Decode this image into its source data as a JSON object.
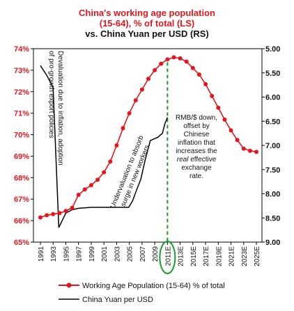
{
  "chart_data": {
    "type": "line",
    "title_line1": "China's working age population",
    "title_line2": "(15-64), % of total (LS)",
    "title_line3": "vs. China Yuan per USD (RS)",
    "left_axis": {
      "ticks": [
        "65%",
        "66%",
        "67%",
        "68%",
        "69%",
        "70%",
        "71%",
        "72%",
        "73%",
        "74%"
      ],
      "ylim": [
        65,
        74
      ]
    },
    "right_axis": {
      "ticks": [
        "5.00",
        "5.50",
        "6.00",
        "6.50",
        "7.00",
        "7.50",
        "8.00",
        "8.50",
        "9.00"
      ],
      "ylim": [
        5.0,
        9.0
      ],
      "inverted": true
    },
    "x_ticks": [
      "1991",
      "1993",
      "1995",
      "1997",
      "1999",
      "2001",
      "2003",
      "2005",
      "2007",
      "2009",
      "2011E",
      "2013E",
      "2015E",
      "2017E",
      "2019E",
      "2021E",
      "2023E",
      "2025E"
    ],
    "x_range": [
      1991,
      2025
    ],
    "highlight_x": 2011,
    "highlight_label": "2011E",
    "series": [
      {
        "name": "Working Age Population (15-64) % of total",
        "color": "#e8141c",
        "axis": "left",
        "marker": "circle",
        "points": [
          [
            1991,
            66.15
          ],
          [
            1992,
            66.25
          ],
          [
            1993,
            66.3
          ],
          [
            1994,
            66.35
          ],
          [
            1995,
            66.45
          ],
          [
            1996,
            66.6
          ],
          [
            1997,
            67.2
          ],
          [
            1998,
            67.45
          ],
          [
            1999,
            67.65
          ],
          [
            2000,
            67.9
          ],
          [
            2001,
            68.25
          ],
          [
            2002,
            68.75
          ],
          [
            2003,
            69.5
          ],
          [
            2004,
            70.3
          ],
          [
            2005,
            71.0
          ],
          [
            2006,
            71.6
          ],
          [
            2007,
            72.1
          ],
          [
            2008,
            72.6
          ],
          [
            2009,
            73.0
          ],
          [
            2010,
            73.3
          ],
          [
            2011,
            73.5
          ],
          [
            2012,
            73.6
          ],
          [
            2013,
            73.55
          ],
          [
            2014,
            73.4
          ],
          [
            2015,
            73.1
          ],
          [
            2016,
            72.8
          ],
          [
            2017,
            72.35
          ],
          [
            2018,
            71.8
          ],
          [
            2019,
            71.25
          ],
          [
            2020,
            70.7
          ],
          [
            2021,
            70.2
          ],
          [
            2022,
            69.75
          ],
          [
            2023,
            69.35
          ],
          [
            2024,
            69.25
          ],
          [
            2025,
            69.2
          ]
        ]
      },
      {
        "name": "China Yuan per USD",
        "color": "#000000",
        "axis": "right",
        "points": [
          [
            1991,
            5.35
          ],
          [
            1992,
            5.55
          ],
          [
            1993,
            5.8
          ],
          [
            1993.9,
            8.7
          ],
          [
            1995,
            8.4
          ],
          [
            1996,
            8.33
          ],
          [
            1997,
            8.3
          ],
          [
            1999,
            8.28
          ],
          [
            2001,
            8.28
          ],
          [
            2003,
            8.28
          ],
          [
            2004.9,
            8.28
          ],
          [
            2005.5,
            8.15
          ],
          [
            2006,
            7.97
          ],
          [
            2006.8,
            7.7
          ],
          [
            2007.5,
            7.3
          ],
          [
            2008.3,
            6.9
          ],
          [
            2009.5,
            6.83
          ],
          [
            2010.2,
            6.75
          ],
          [
            2010.6,
            6.55
          ],
          [
            2011,
            6.42
          ]
        ]
      }
    ],
    "annotations": {
      "devaluation": "Devaluation due to inflation, adoption of pro-growth export policies",
      "undervaluation": "Undervaluation to absorb surge in new workers.",
      "rmb": {
        "l1": "RMB/$ down,",
        "l2": "offset by",
        "l3": "Chinese",
        "l4": "inflation that",
        "l5": "increases the",
        "l6a": "real",
        "l6b": " effective",
        "l7": "exchange",
        "l8": "rate."
      }
    },
    "legend": {
      "placement": "bottom",
      "items": [
        "Working Age Population (15-64) % of total",
        "China Yuan per USD"
      ]
    }
  }
}
